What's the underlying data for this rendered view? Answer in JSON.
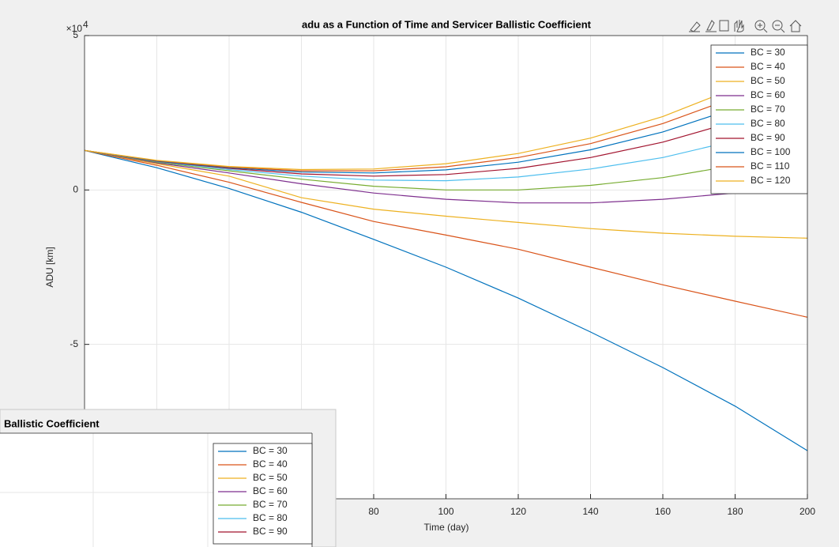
{
  "chart_data": [
    {
      "type": "line",
      "title": "adu as a Function of Time and Servicer Ballistic Coefficient",
      "x_label": "Time (day)",
      "y_label": "ADU [km]",
      "y_multiplier_base": "×10",
      "y_multiplier_exponent": "4",
      "x": [
        0,
        20,
        40,
        60,
        80,
        100,
        120,
        140,
        160,
        180,
        200
      ],
      "xlim": [
        0,
        200
      ],
      "xticks": [
        0,
        20,
        40,
        60,
        80,
        100,
        120,
        140,
        160,
        180,
        200
      ],
      "ylim": [
        -10,
        5
      ],
      "yticks": [
        -5,
        0,
        5
      ],
      "grid": true,
      "legend": "upper right",
      "series": [
        {
          "name": "BC = 30",
          "color": "#0072BD",
          "values": [
            1.28,
            0.72,
            0.05,
            -0.72,
            -1.6,
            -2.5,
            -3.5,
            -4.6,
            -5.75,
            -7.0,
            -8.44
          ]
        },
        {
          "name": "BC = 40",
          "color": "#D95319",
          "values": [
            1.28,
            0.8,
            0.25,
            -0.4,
            -1.02,
            -1.46,
            -1.92,
            -2.5,
            -3.07,
            -3.6,
            -4.12
          ]
        },
        {
          "name": "BC = 50",
          "color": "#EDB120",
          "values": [
            1.28,
            0.85,
            0.45,
            -0.25,
            -0.62,
            -0.85,
            -1.05,
            -1.25,
            -1.4,
            -1.5,
            -1.56
          ]
        },
        {
          "name": "BC = 60",
          "color": "#7E2F8E",
          "values": [
            1.28,
            0.88,
            0.55,
            0.2,
            -0.1,
            -0.3,
            -0.42,
            -0.42,
            -0.3,
            -0.1,
            0.18
          ]
        },
        {
          "name": "BC = 70",
          "color": "#77AC30",
          "values": [
            1.28,
            0.9,
            0.62,
            0.35,
            0.12,
            0.0,
            0.0,
            0.15,
            0.4,
            0.8,
            1.38
          ]
        },
        {
          "name": "BC = 80",
          "color": "#4DBEEE",
          "values": [
            1.28,
            0.92,
            0.66,
            0.45,
            0.32,
            0.3,
            0.42,
            0.68,
            1.05,
            1.6,
            2.3
          ]
        },
        {
          "name": "BC = 90",
          "color": "#A2142F",
          "values": [
            1.28,
            0.93,
            0.7,
            0.52,
            0.45,
            0.5,
            0.7,
            1.05,
            1.55,
            2.22,
            3.04
          ]
        },
        {
          "name": "BC = 100",
          "color": "#0072BD",
          "values": [
            1.28,
            0.94,
            0.72,
            0.58,
            0.55,
            0.65,
            0.9,
            1.3,
            1.88,
            2.65,
            3.6
          ]
        },
        {
          "name": "BC = 110",
          "color": "#D95319",
          "values": [
            1.28,
            0.95,
            0.74,
            0.62,
            0.62,
            0.75,
            1.05,
            1.5,
            2.15,
            3.0,
            4.07
          ]
        },
        {
          "name": "BC = 120",
          "color": "#EDB120",
          "values": [
            1.28,
            0.96,
            0.76,
            0.66,
            0.68,
            0.85,
            1.18,
            1.68,
            2.38,
            3.3,
            4.48
          ]
        }
      ]
    },
    {
      "type": "line",
      "title": "Ballistic Coefficient",
      "series": [
        {
          "name": "BC = 30",
          "color": "#0072BD"
        },
        {
          "name": "BC = 40",
          "color": "#D95319"
        },
        {
          "name": "BC = 50",
          "color": "#EDB120"
        },
        {
          "name": "BC = 60",
          "color": "#7E2F8E"
        },
        {
          "name": "BC = 70",
          "color": "#77AC30"
        },
        {
          "name": "BC = 80",
          "color": "#4DBEEE"
        },
        {
          "name": "BC = 90",
          "color": "#A2142F"
        }
      ]
    }
  ]
}
